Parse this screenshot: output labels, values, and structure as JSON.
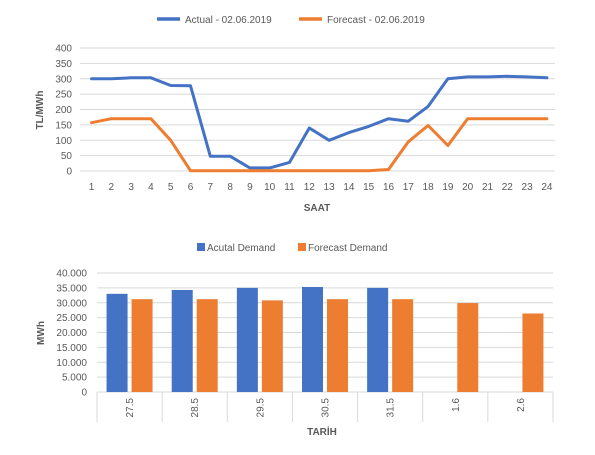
{
  "chart_data": [
    {
      "type": "line",
      "title": "",
      "xlabel": "SAAT",
      "ylabel": "TL/MWh",
      "x": [
        1,
        2,
        3,
        4,
        5,
        6,
        7,
        8,
        9,
        10,
        11,
        12,
        13,
        14,
        15,
        16,
        17,
        18,
        19,
        20,
        21,
        22,
        23,
        24
      ],
      "ylim": [
        0,
        400
      ],
      "yticks": [
        "0",
        "50",
        "100",
        "150",
        "200",
        "250",
        "300",
        "350",
        "400"
      ],
      "ytick_values": [
        0,
        50,
        100,
        150,
        200,
        250,
        300,
        350,
        400
      ],
      "grid": true,
      "legend_position": "top",
      "series": [
        {
          "name": "Actual - 02.06.2019",
          "color": "#4472C4",
          "values": [
            300,
            300,
            303,
            303,
            278,
            277,
            48,
            48,
            10,
            10,
            28,
            140,
            100,
            125,
            145,
            170,
            162,
            210,
            300,
            306,
            306,
            308,
            306,
            303
          ]
        },
        {
          "name": "Forecast - 02.06.2019",
          "color": "#ED7D31",
          "values": [
            157,
            170,
            170,
            170,
            100,
            1,
            1,
            1,
            1,
            1,
            1,
            1,
            1,
            1,
            1,
            5,
            95,
            148,
            83,
            170,
            170,
            170,
            170,
            170
          ]
        }
      ]
    },
    {
      "type": "bar",
      "title": "",
      "xlabel": "TARİH",
      "ylabel": "MWh",
      "categories": [
        "27.5",
        "28.5",
        "29.5",
        "30.5",
        "31.5",
        "1.6",
        "2.6"
      ],
      "ylim": [
        0,
        40000
      ],
      "yticks": [
        "0",
        "5.000",
        "10.000",
        "15.000",
        "20.000",
        "25.000",
        "30.000",
        "35.000",
        "40.000"
      ],
      "ytick_values": [
        0,
        5000,
        10000,
        15000,
        20000,
        25000,
        30000,
        35000,
        40000
      ],
      "grid": true,
      "legend_position": "top",
      "series": [
        {
          "name": "Acutal Demand",
          "color": "#4472C4",
          "values": [
            33000,
            34300,
            35000,
            35300,
            35000,
            null,
            null
          ]
        },
        {
          "name": "Forecast Demand",
          "color": "#ED7D31",
          "values": [
            31200,
            31200,
            30800,
            31200,
            31200,
            29900,
            26400
          ]
        }
      ]
    }
  ]
}
